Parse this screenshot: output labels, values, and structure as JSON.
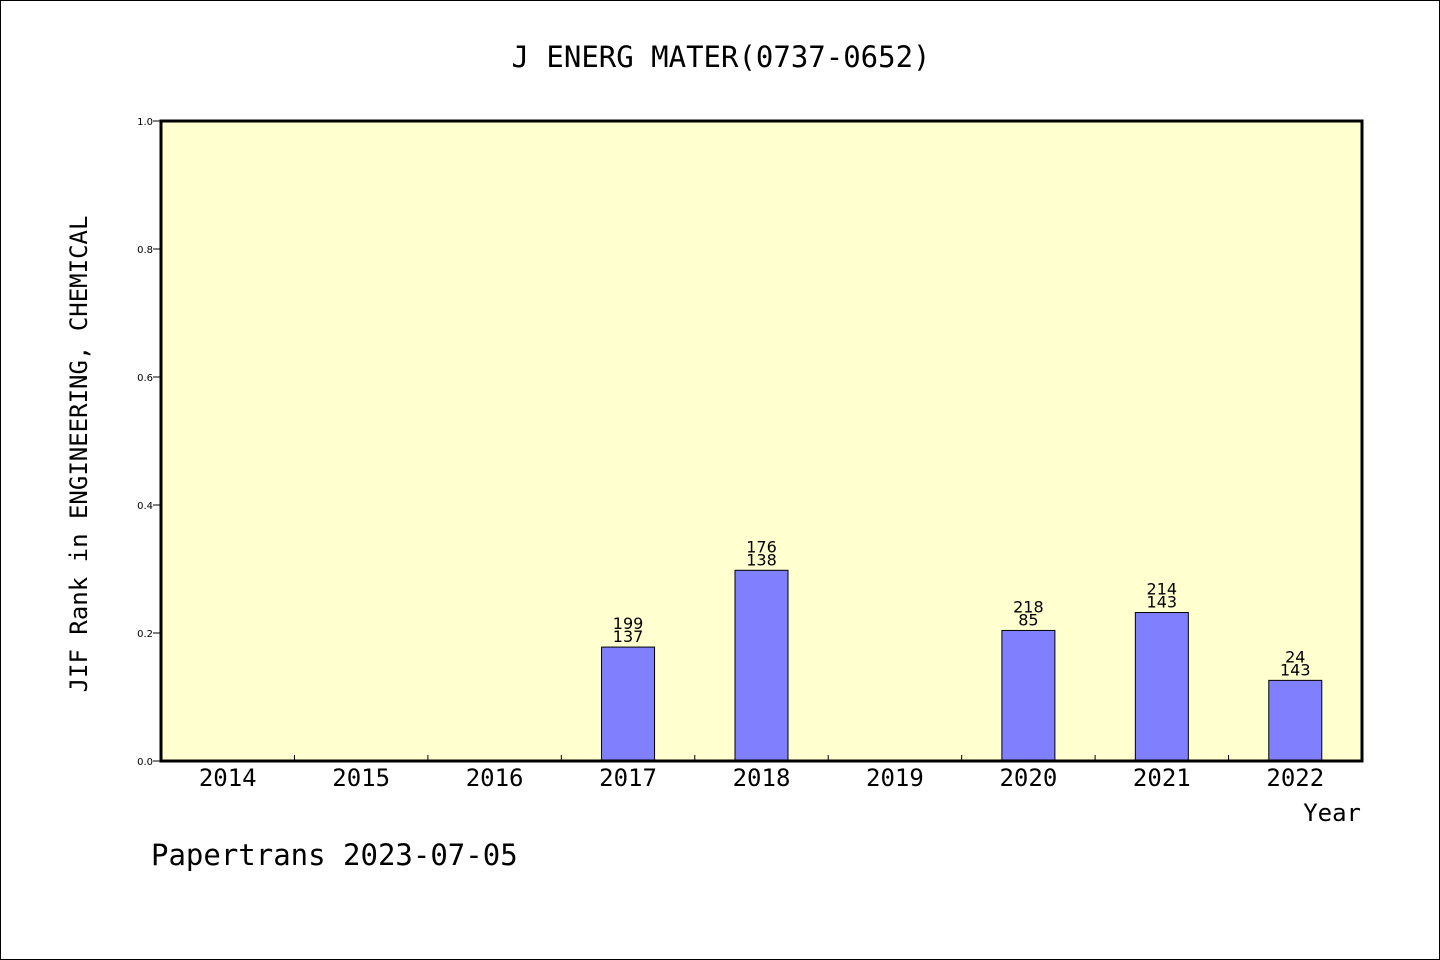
{
  "chart_data": {
    "type": "bar",
    "title": "J ENERG MATER(0737-0652)",
    "xlabel": "Year",
    "ylabel": "JIF Rank in ENGINEERING, CHEMICAL",
    "categories": [
      "2014",
      "2015",
      "2016",
      "2017",
      "2018",
      "2019",
      "2020",
      "2021",
      "2022"
    ],
    "values": [
      null,
      null,
      null,
      0.178,
      0.298,
      null,
      0.204,
      0.232,
      0.126
    ],
    "data_labels": [
      null,
      null,
      null,
      [
        "199",
        "137"
      ],
      [
        "176",
        "138"
      ],
      null,
      [
        "218",
        "85"
      ],
      [
        "214",
        "143"
      ],
      [
        "24",
        "143"
      ]
    ],
    "ylim": [
      0,
      1
    ],
    "yticks": [
      "0.0",
      "0.2",
      "0.4",
      "0.6",
      "0.8",
      "1.0"
    ],
    "grid": false,
    "colors": {
      "plot_background": "#ffffd0",
      "bar": "#8080ff",
      "axis": "#000000"
    }
  },
  "footer": "Papertrans 2023-07-05"
}
